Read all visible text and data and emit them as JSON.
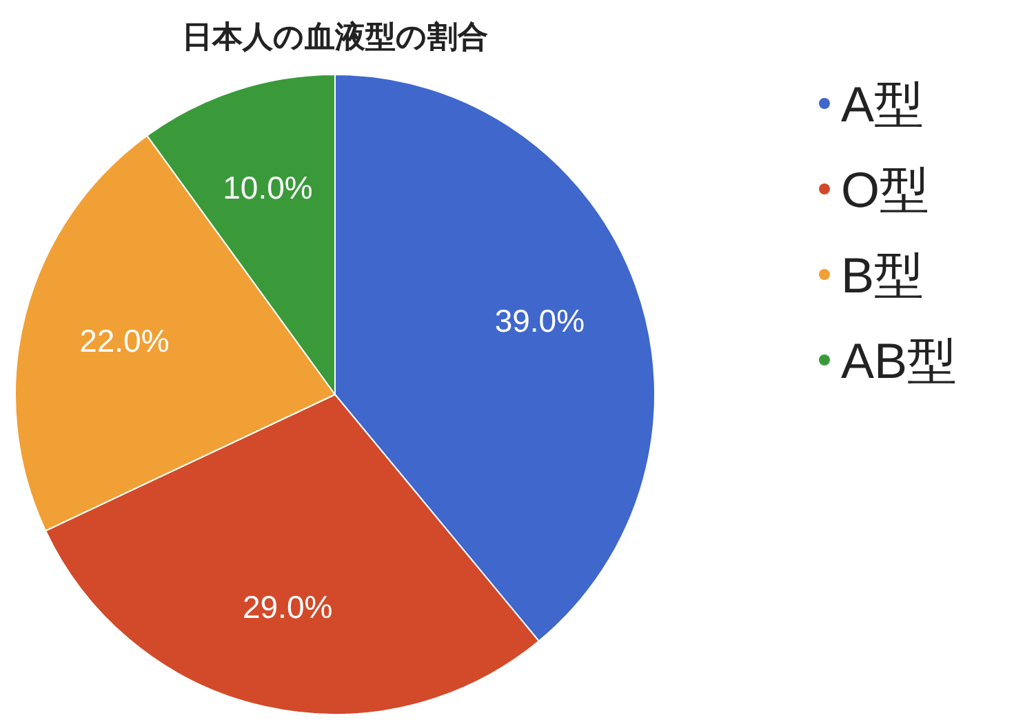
{
  "chart_data": {
    "type": "pie",
    "title": "日本人の血液型の割合",
    "categories": [
      "A型",
      "O型",
      "B型",
      "AB型"
    ],
    "values": [
      39,
      29,
      22,
      10
    ],
    "colors": [
      "#3f67cc",
      "#d24a2a",
      "#f0a035",
      "#3a9a3a"
    ],
    "value_labels": [
      "39.0%",
      "29.0%",
      "22.0%",
      "10.0%"
    ],
    "legend": "right"
  }
}
